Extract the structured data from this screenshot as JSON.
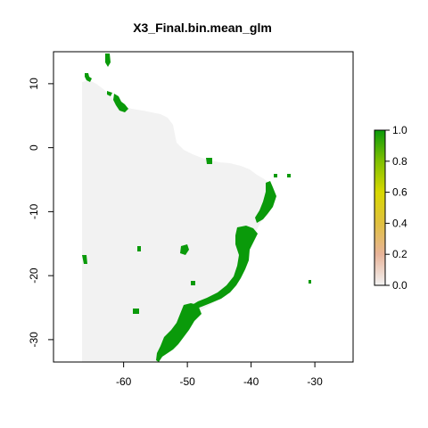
{
  "title": "X3_Final.bin.mean_glm",
  "colors": {
    "background_land": "#f2f2f2",
    "suitable": "#0a9a0a",
    "axis": "#000000"
  },
  "x_axis": {
    "ticks": [
      {
        "value": -60,
        "label": "-60"
      },
      {
        "value": -50,
        "label": "-50"
      },
      {
        "value": -40,
        "label": "-40"
      },
      {
        "value": -30,
        "label": "-30"
      }
    ]
  },
  "y_axis": {
    "ticks": [
      {
        "value": 10,
        "label": "10"
      },
      {
        "value": 0,
        "label": "0"
      },
      {
        "value": -10,
        "label": "-10"
      },
      {
        "value": -20,
        "label": "-20"
      },
      {
        "value": -30,
        "label": "-30"
      }
    ]
  },
  "legend": {
    "ticks": [
      {
        "value": 1.0,
        "label": "1.0"
      },
      {
        "value": 0.8,
        "label": "0.8"
      },
      {
        "value": 0.6,
        "label": "0.6"
      },
      {
        "value": 0.4,
        "label": "0.4"
      },
      {
        "value": 0.2,
        "label": "0.2"
      },
      {
        "value": 0.0,
        "label": "0.0"
      }
    ],
    "gradient_colors": [
      "#f2f2f2",
      "#e8b49a",
      "#e0c040",
      "#d8d800",
      "#80c000",
      "#0a9a0a"
    ]
  },
  "map_extent": {
    "xlim": [
      -71,
      -24
    ],
    "ylim": [
      -33.5,
      15
    ]
  }
}
